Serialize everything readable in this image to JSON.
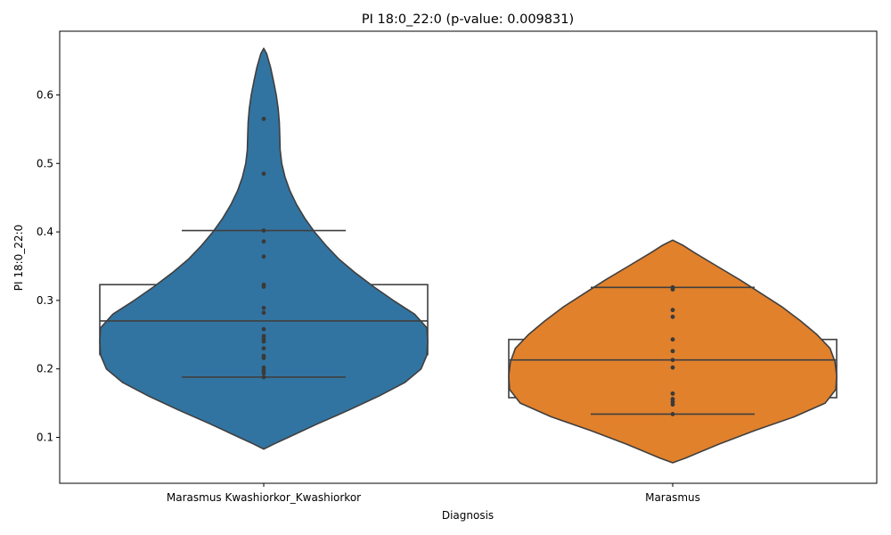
{
  "chart_data": {
    "type": "violin",
    "title": "PI 18:0_22:0 (p-value: 0.009831)",
    "xlabel": "Diagnosis",
    "ylabel": "PI 18:0_22:0",
    "ylim": [
      0.033,
      0.693
    ],
    "yticks": [
      0.1,
      0.2,
      0.3,
      0.4,
      0.5,
      0.6
    ],
    "ytick_labels": [
      "0.1",
      "0.2",
      "0.3",
      "0.4",
      "0.5",
      "0.6"
    ],
    "grid": false,
    "categories": [
      "Marasmus Kwashiorkor_Kwashiorkor",
      "Marasmus"
    ],
    "groups": [
      {
        "category": "Marasmus Kwashiorkor_Kwashiorkor",
        "color": "#3274a1",
        "box": {
          "q1": 0.221,
          "median": 0.27,
          "q3": 0.323,
          "whisker_low": 0.188,
          "whisker_high": 0.402
        },
        "points": [
          0.565,
          0.485,
          0.402,
          0.386,
          0.364,
          0.323,
          0.32,
          0.289,
          0.282,
          0.258,
          0.248,
          0.244,
          0.24,
          0.23,
          0.219,
          0.216,
          0.202,
          0.198,
          0.194,
          0.188
        ],
        "density_profile": [
          [
            0.083,
            0.0
          ],
          [
            0.09,
            0.06
          ],
          [
            0.1,
            0.15
          ],
          [
            0.12,
            0.33
          ],
          [
            0.14,
            0.52
          ],
          [
            0.16,
            0.7
          ],
          [
            0.18,
            0.86
          ],
          [
            0.2,
            0.96
          ],
          [
            0.22,
            0.995
          ],
          [
            0.24,
            1.0
          ],
          [
            0.26,
            0.995
          ],
          [
            0.28,
            0.92
          ],
          [
            0.3,
            0.79
          ],
          [
            0.32,
            0.67
          ],
          [
            0.34,
            0.56
          ],
          [
            0.36,
            0.46
          ],
          [
            0.38,
            0.38
          ],
          [
            0.4,
            0.31
          ],
          [
            0.42,
            0.25
          ],
          [
            0.44,
            0.2
          ],
          [
            0.46,
            0.16
          ],
          [
            0.48,
            0.13
          ],
          [
            0.5,
            0.11
          ],
          [
            0.52,
            0.1
          ],
          [
            0.54,
            0.098
          ],
          [
            0.56,
            0.095
          ],
          [
            0.58,
            0.088
          ],
          [
            0.6,
            0.076
          ],
          [
            0.62,
            0.06
          ],
          [
            0.64,
            0.042
          ],
          [
            0.66,
            0.018
          ],
          [
            0.668,
            0.0
          ]
        ]
      },
      {
        "category": "Marasmus",
        "color": "#e1812c",
        "box": {
          "q1": 0.158,
          "median": 0.213,
          "q3": 0.243,
          "whisker_low": 0.134,
          "whisker_high": 0.319
        },
        "points": [
          0.319,
          0.316,
          0.286,
          0.276,
          0.243,
          0.226,
          0.213,
          0.202,
          0.164,
          0.156,
          0.152,
          0.148,
          0.134
        ],
        "density_profile": [
          [
            0.063,
            0.0
          ],
          [
            0.07,
            0.08
          ],
          [
            0.09,
            0.28
          ],
          [
            0.11,
            0.5
          ],
          [
            0.13,
            0.74
          ],
          [
            0.15,
            0.93
          ],
          [
            0.17,
            0.995
          ],
          [
            0.19,
            1.0
          ],
          [
            0.21,
            0.99
          ],
          [
            0.23,
            0.96
          ],
          [
            0.25,
            0.88
          ],
          [
            0.27,
            0.78
          ],
          [
            0.29,
            0.67
          ],
          [
            0.31,
            0.54
          ],
          [
            0.33,
            0.41
          ],
          [
            0.35,
            0.27
          ],
          [
            0.37,
            0.13
          ],
          [
            0.38,
            0.065
          ],
          [
            0.388,
            0.0
          ]
        ]
      }
    ]
  }
}
